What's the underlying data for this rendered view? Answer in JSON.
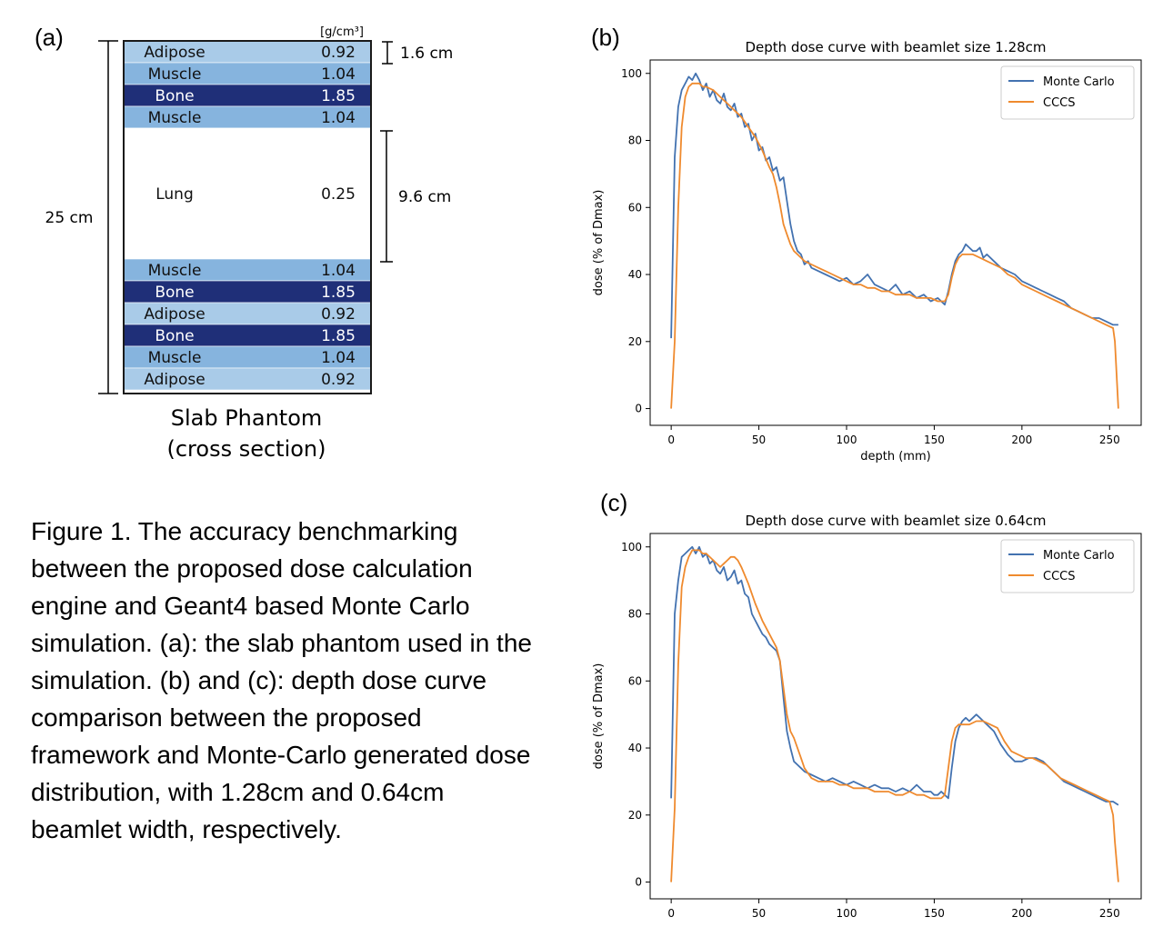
{
  "panels": {
    "a": "(a)",
    "b": "(b)",
    "c": "(c)"
  },
  "phantom": {
    "unit_label": "[g/cm³]",
    "overall_thickness": "25 cm",
    "slab_thickness_label": "1.6 cm",
    "lung_thickness_label": "9.6 cm",
    "title_line1": "Slab Phantom",
    "title_line2": "(cross section)",
    "colors": {
      "adipose": "#a9cbe8",
      "muscle": "#86b4de",
      "bone": "#1f2f78",
      "lung": "#ffffff",
      "frame": "#1a1a1a"
    },
    "layers": [
      {
        "material": "Adipose",
        "density": "0.92",
        "kind": "adipose"
      },
      {
        "material": "Muscle",
        "density": "1.04",
        "kind": "muscle"
      },
      {
        "material": "Bone",
        "density": "1.85",
        "kind": "bone"
      },
      {
        "material": "Muscle",
        "density": "1.04",
        "kind": "muscle"
      },
      {
        "material": "Lung",
        "density": "0.25",
        "kind": "lung"
      },
      {
        "material": "Muscle",
        "density": "1.04",
        "kind": "muscle"
      },
      {
        "material": "Bone",
        "density": "1.85",
        "kind": "bone"
      },
      {
        "material": "Adipose",
        "density": "0.92",
        "kind": "adipose"
      },
      {
        "material": "Bone",
        "density": "1.85",
        "kind": "bone"
      },
      {
        "material": "Muscle",
        "density": "1.04",
        "kind": "muscle"
      },
      {
        "material": "Adipose",
        "density": "0.92",
        "kind": "adipose"
      }
    ]
  },
  "caption": "Figure 1. The accuracy benchmarking between the proposed dose calculation engine and Geant4 based Monte Carlo simulation. (a): the slab phantom used in the simulation. (b) and (c): depth dose curve comparison between the proposed framework and Monte-Carlo generated dose distribution, with 1.28cm and 0.64cm beamlet width, respectively.",
  "chart_data": [
    {
      "type": "line",
      "title": "Depth dose curve with beamlet size 1.28cm",
      "xlabel": "depth (mm)",
      "ylabel": "dose (% of Dmax)",
      "xlim": [
        -12,
        268
      ],
      "ylim": [
        -5,
        104
      ],
      "xticks": [
        0,
        50,
        100,
        150,
        200,
        250
      ],
      "yticks": [
        0,
        20,
        40,
        60,
        80,
        100
      ],
      "grid": false,
      "legend": "top-right",
      "series": [
        {
          "name": "Monte Carlo",
          "color": "#4372b0",
          "x": [
            0,
            2,
            4,
            6,
            8,
            10,
            12,
            14,
            16,
            18,
            20,
            22,
            24,
            26,
            28,
            30,
            32,
            34,
            36,
            38,
            40,
            42,
            44,
            46,
            48,
            50,
            52,
            54,
            56,
            58,
            60,
            62,
            64,
            66,
            68,
            70,
            72,
            74,
            76,
            78,
            80,
            84,
            88,
            92,
            96,
            100,
            104,
            108,
            112,
            116,
            120,
            124,
            128,
            132,
            136,
            140,
            144,
            148,
            152,
            156,
            158,
            160,
            162,
            164,
            166,
            168,
            170,
            172,
            174,
            176,
            178,
            180,
            184,
            188,
            192,
            196,
            200,
            204,
            208,
            212,
            216,
            220,
            224,
            228,
            232,
            236,
            240,
            244,
            248,
            252,
            255
          ],
          "y": [
            21,
            75,
            90,
            95,
            97,
            99,
            98,
            100,
            98,
            95,
            97,
            93,
            95,
            92,
            91,
            94,
            90,
            89,
            91,
            87,
            88,
            84,
            85,
            80,
            82,
            77,
            78,
            74,
            75,
            71,
            72,
            68,
            69,
            62,
            55,
            50,
            47,
            46,
            43,
            44,
            42,
            41,
            40,
            39,
            38,
            39,
            37,
            38,
            40,
            37,
            36,
            35,
            37,
            34,
            35,
            33,
            34,
            32,
            33,
            31,
            35,
            40,
            44,
            46,
            47,
            49,
            48,
            47,
            47,
            48,
            45,
            46,
            44,
            42,
            41,
            40,
            38,
            37,
            36,
            35,
            34,
            33,
            32,
            30,
            29,
            28,
            27,
            27,
            26,
            25,
            25
          ]
        },
        {
          "name": "CCCS",
          "color": "#ef8a2e",
          "x": [
            0,
            2,
            4,
            6,
            8,
            10,
            12,
            14,
            16,
            18,
            20,
            24,
            28,
            32,
            36,
            40,
            44,
            48,
            52,
            56,
            58,
            60,
            62,
            64,
            66,
            68,
            70,
            72,
            74,
            76,
            80,
            84,
            88,
            92,
            96,
            100,
            104,
            108,
            112,
            116,
            120,
            124,
            128,
            132,
            136,
            140,
            144,
            148,
            152,
            156,
            158,
            160,
            162,
            164,
            166,
            168,
            170,
            172,
            176,
            180,
            184,
            188,
            192,
            196,
            200,
            204,
            208,
            212,
            216,
            220,
            224,
            228,
            232,
            236,
            240,
            244,
            248,
            252,
            253,
            255
          ],
          "y": [
            0,
            20,
            60,
            84,
            93,
            96,
            97,
            97,
            97,
            96,
            96,
            95,
            93,
            91,
            89,
            87,
            84,
            81,
            77,
            72,
            70,
            66,
            61,
            55,
            52,
            49,
            47,
            46,
            45,
            44,
            43,
            42,
            41,
            40,
            39,
            38,
            37,
            37,
            36,
            36,
            35,
            35,
            34,
            34,
            34,
            33,
            33,
            33,
            32,
            32,
            34,
            39,
            43,
            45,
            46,
            46,
            46,
            46,
            45,
            44,
            43,
            42,
            40,
            39,
            37,
            36,
            35,
            34,
            33,
            32,
            31,
            30,
            29,
            28,
            27,
            26,
            25,
            24,
            20,
            0
          ]
        }
      ]
    },
    {
      "type": "line",
      "title": "Depth dose curve with beamlet size 0.64cm",
      "xlabel": "",
      "ylabel": "dose (% of Dmax)",
      "xlim": [
        -12,
        268
      ],
      "ylim": [
        -5,
        104
      ],
      "xticks": [
        0,
        50,
        100,
        150,
        200,
        250
      ],
      "yticks": [
        0,
        20,
        40,
        60,
        80,
        100
      ],
      "grid": false,
      "legend": "top-right",
      "series": [
        {
          "name": "Monte Carlo",
          "color": "#4372b0",
          "x": [
            0,
            2,
            4,
            6,
            8,
            10,
            12,
            14,
            16,
            18,
            20,
            22,
            24,
            26,
            28,
            30,
            32,
            34,
            36,
            38,
            40,
            42,
            44,
            46,
            48,
            50,
            52,
            54,
            56,
            58,
            60,
            62,
            64,
            66,
            68,
            70,
            72,
            74,
            76,
            80,
            84,
            88,
            92,
            96,
            100,
            104,
            108,
            112,
            116,
            120,
            124,
            128,
            132,
            136,
            140,
            144,
            148,
            150,
            152,
            154,
            156,
            158,
            160,
            162,
            164,
            166,
            168,
            170,
            172,
            174,
            176,
            178,
            180,
            184,
            188,
            192,
            196,
            200,
            204,
            208,
            212,
            216,
            220,
            224,
            228,
            232,
            236,
            240,
            244,
            248,
            252,
            255
          ],
          "y": [
            25,
            80,
            90,
            97,
            98,
            99,
            100,
            98,
            100,
            97,
            98,
            95,
            96,
            93,
            92,
            94,
            90,
            91,
            93,
            89,
            90,
            86,
            85,
            80,
            78,
            76,
            74,
            73,
            71,
            70,
            69,
            66,
            55,
            45,
            40,
            36,
            35,
            34,
            33,
            32,
            31,
            30,
            31,
            30,
            29,
            30,
            29,
            28,
            29,
            28,
            28,
            27,
            28,
            27,
            29,
            27,
            27,
            26,
            26,
            27,
            26,
            25,
            34,
            42,
            46,
            48,
            49,
            48,
            49,
            50,
            49,
            48,
            47,
            45,
            41,
            38,
            36,
            36,
            37,
            37,
            36,
            34,
            32,
            30,
            29,
            28,
            27,
            26,
            25,
            24,
            24,
            23
          ]
        },
        {
          "name": "CCCS",
          "color": "#ef8a2e",
          "x": [
            0,
            2,
            4,
            6,
            8,
            10,
            12,
            14,
            16,
            18,
            20,
            24,
            28,
            30,
            32,
            34,
            36,
            38,
            40,
            44,
            48,
            52,
            56,
            60,
            62,
            64,
            66,
            68,
            70,
            72,
            74,
            76,
            80,
            84,
            88,
            92,
            96,
            100,
            104,
            108,
            112,
            116,
            120,
            124,
            128,
            132,
            136,
            140,
            144,
            148,
            152,
            154,
            156,
            158,
            160,
            162,
            164,
            166,
            168,
            170,
            174,
            178,
            182,
            186,
            190,
            194,
            198,
            202,
            206,
            210,
            214,
            218,
            222,
            226,
            230,
            234,
            238,
            242,
            246,
            250,
            252,
            253,
            255
          ],
          "y": [
            0,
            22,
            65,
            88,
            94,
            97,
            99,
            99,
            99,
            98,
            98,
            96,
            94,
            95,
            96,
            97,
            97,
            96,
            94,
            89,
            83,
            78,
            74,
            70,
            66,
            58,
            50,
            45,
            43,
            40,
            37,
            34,
            31,
            30,
            30,
            30,
            29,
            29,
            28,
            28,
            28,
            27,
            27,
            27,
            26,
            26,
            27,
            26,
            26,
            25,
            25,
            25,
            26,
            34,
            42,
            46,
            47,
            47,
            47,
            47,
            48,
            48,
            47,
            46,
            42,
            39,
            38,
            37,
            37,
            36,
            35,
            33,
            31,
            30,
            29,
            28,
            27,
            26,
            25,
            24,
            20,
            12,
            0
          ]
        }
      ]
    }
  ]
}
